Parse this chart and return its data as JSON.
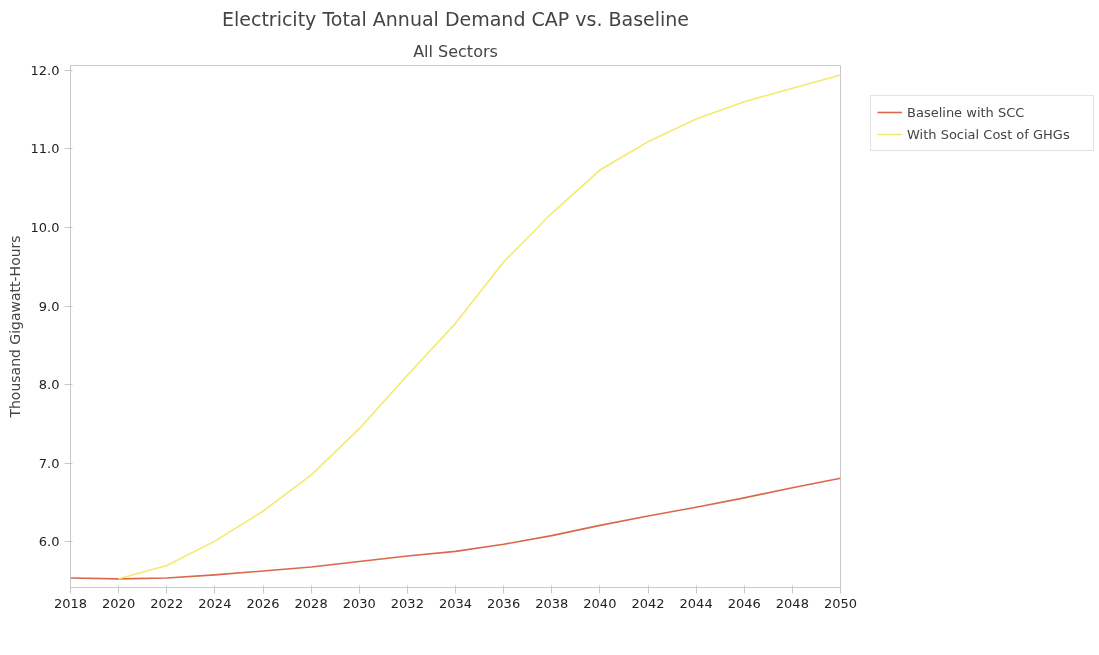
{
  "chart_data": {
    "type": "line",
    "title": "Electricity Total Annual Demand CAP vs. Baseline",
    "subtitle": "All Sectors",
    "ylabel": "Thousand Gigawatt-Hours",
    "x": [
      2018,
      2020,
      2022,
      2024,
      2026,
      2028,
      2030,
      2032,
      2034,
      2036,
      2038,
      2040,
      2042,
      2044,
      2046,
      2048,
      2050
    ],
    "series": [
      {
        "name": "Baseline with SCC",
        "color": "#d9694a",
        "values": [
          5.54,
          5.53,
          5.54,
          5.58,
          5.63,
          5.68,
          5.75,
          5.82,
          5.88,
          5.97,
          6.08,
          6.21,
          6.33,
          6.44,
          6.56,
          6.69,
          6.81
        ]
      },
      {
        "name": "With Social Cost of GHGs",
        "color": "#f5e96e",
        "x": [
          2020,
          2022,
          2024,
          2026,
          2028,
          2030,
          2032,
          2034,
          2036,
          2038,
          2040,
          2042,
          2044,
          2046,
          2048,
          2050
        ],
        "values": [
          5.53,
          5.7,
          6.01,
          6.39,
          6.85,
          7.44,
          8.12,
          8.78,
          9.56,
          10.18,
          10.73,
          11.09,
          11.38,
          11.6,
          11.77,
          11.94
        ]
      }
    ],
    "xlim": [
      2018,
      2050
    ],
    "xticks": [
      2018,
      2020,
      2022,
      2024,
      2026,
      2028,
      2030,
      2032,
      2034,
      2036,
      2038,
      2040,
      2042,
      2044,
      2046,
      2048,
      2050
    ],
    "ylim": [
      5.42,
      12.06
    ],
    "yticks": [
      {
        "value": 6,
        "label": "6.0"
      },
      {
        "value": 7,
        "label": "7.0"
      },
      {
        "value": 8,
        "label": "8.0"
      },
      {
        "value": 9,
        "label": "9.0"
      },
      {
        "value": 10,
        "label": "10.0"
      },
      {
        "value": 11,
        "label": "11.0"
      },
      {
        "value": 12,
        "label": "12.0"
      }
    ],
    "grid": false,
    "legend": "right",
    "marker": "none",
    "line_style": "solid"
  }
}
